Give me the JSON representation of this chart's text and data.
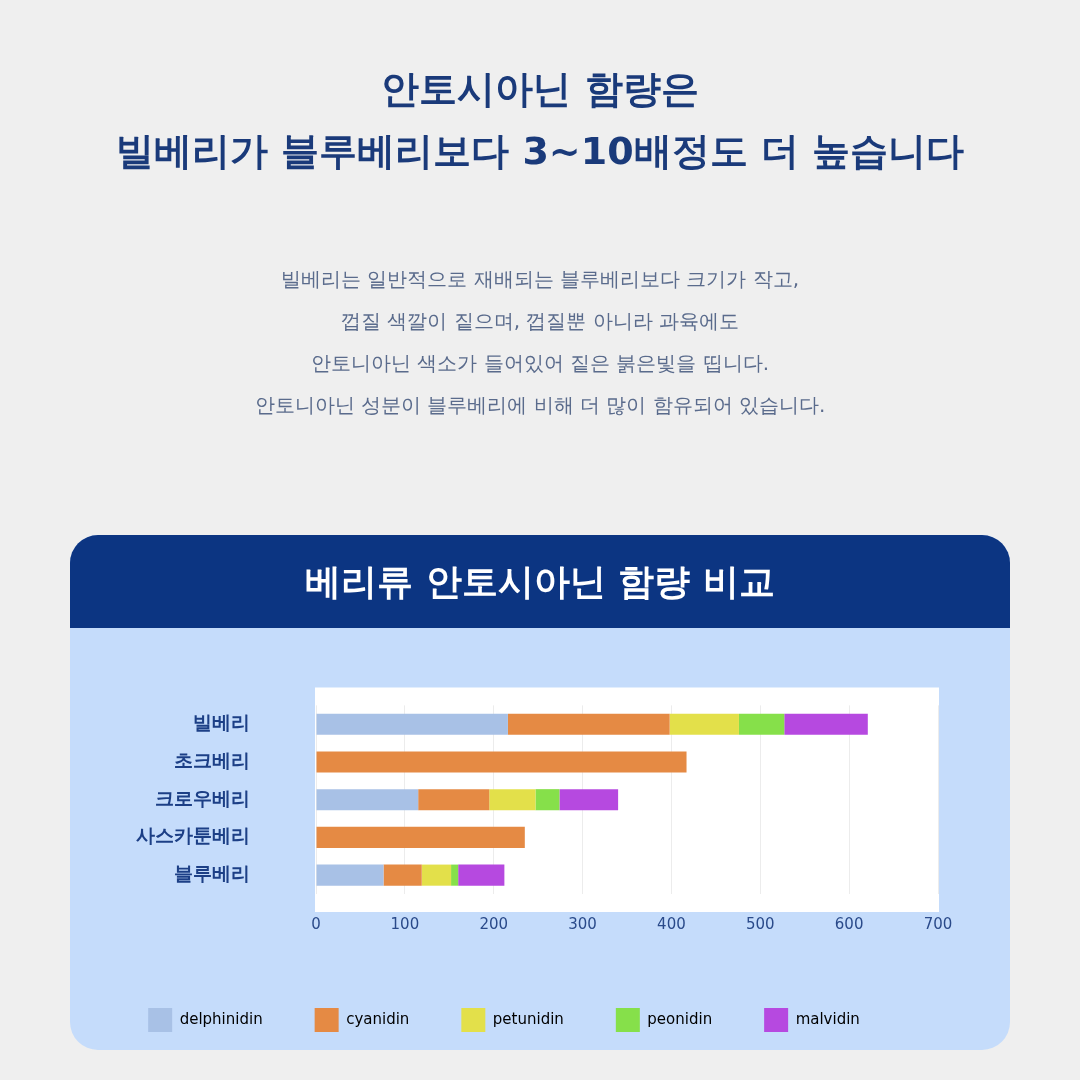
{
  "chart_data": {
    "type": "bar",
    "title": "베리류 안토시아닌 함량 비교",
    "annotations": [
      "안토시아닌 함량은\n빌베리가 블루베리보다 3~10배정도 더 높습니다",
      "빌베리는 일반적으로 재배되는 블루베리보다 크기가 작고,\n껍질 색깔이 짙으며, 껍질뿐 아니라 과육에도\n안토니아닌 색소가 들어있어 짙은 붉은빛을 띱니다.\n안토니아닌 성분이 블루베리에 비해 더 많이 함유되어 있습니다."
    ],
    "categories": [
      "빌베리",
      "초크베리",
      "크로우베리",
      "사스카툰베리",
      "블루베리"
    ],
    "orientation": "horizontal",
    "stacked": true,
    "series": [
      {
        "name": "delphinidin",
        "color": "#a8c1e6",
        "values": [
          216,
          0,
          115,
          0,
          76
        ]
      },
      {
        "name": "cyanidin",
        "color": "#e58a44",
        "values": [
          182,
          417,
          80,
          235,
          43
        ]
      },
      {
        "name": "petunidin",
        "color": "#e3e04a",
        "values": [
          78,
          0,
          52,
          0,
          33
        ]
      },
      {
        "name": "peonidin",
        "color": "#86e04a",
        "values": [
          51,
          0,
          27,
          0,
          8
        ]
      },
      {
        "name": "malvidin",
        "color": "#b649e0",
        "values": [
          94,
          0,
          66,
          0,
          52
        ]
      }
    ],
    "xlim": [
      0,
      700
    ],
    "xticks": [
      0,
      100,
      200,
      300,
      400,
      500,
      600,
      700
    ],
    "grid": "x",
    "legend": "bottom"
  }
}
